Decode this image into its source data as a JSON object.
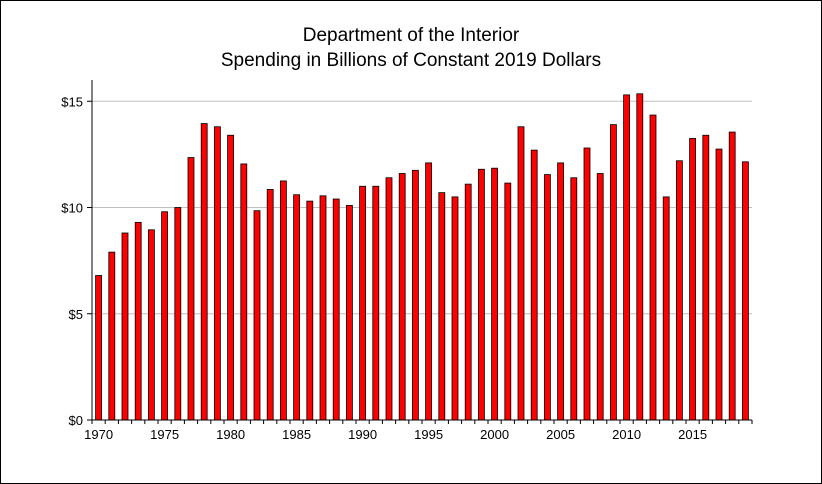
{
  "chart_data": {
    "type": "bar",
    "title": "Department of the Interior",
    "subtitle": "Spending in Billions of Constant 2019 Dollars",
    "xlabel": "",
    "ylabel": "",
    "x": [
      1970,
      1971,
      1972,
      1973,
      1974,
      1975,
      1976,
      1977,
      1978,
      1979,
      1980,
      1981,
      1982,
      1983,
      1984,
      1985,
      1986,
      1987,
      1988,
      1989,
      1990,
      1991,
      1992,
      1993,
      1994,
      1995,
      1996,
      1997,
      1998,
      1999,
      2000,
      2001,
      2002,
      2003,
      2004,
      2005,
      2006,
      2007,
      2008,
      2009,
      2010,
      2011,
      2012,
      2013,
      2014,
      2015,
      2016,
      2017,
      2018,
      2019
    ],
    "values": [
      6.8,
      7.9,
      8.8,
      9.3,
      8.95,
      9.8,
      10.0,
      12.35,
      13.95,
      13.8,
      13.4,
      12.05,
      9.85,
      10.85,
      11.25,
      10.6,
      10.3,
      10.55,
      10.4,
      10.1,
      11.0,
      11.0,
      11.4,
      11.6,
      11.75,
      12.1,
      10.7,
      10.5,
      11.1,
      11.8,
      11.85,
      11.15,
      13.8,
      12.7,
      11.55,
      12.1,
      11.4,
      12.8,
      11.6,
      13.9,
      15.3,
      15.35,
      14.35,
      10.5,
      12.2,
      13.25,
      13.4,
      12.75,
      13.55,
      12.15
    ],
    "x_tick_labels": [
      "1970",
      "1975",
      "1980",
      "1985",
      "1990",
      "1995",
      "2000",
      "2005",
      "2010",
      "2015"
    ],
    "y_tick_labels": [
      "$0",
      "$5",
      "$10",
      "$15"
    ],
    "y_ticks": [
      0,
      5,
      10,
      15
    ],
    "ylim": [
      0,
      16
    ],
    "grid": true,
    "legend": "none",
    "bar_color": "#ff0000",
    "bar_edge_color": "#000000"
  }
}
